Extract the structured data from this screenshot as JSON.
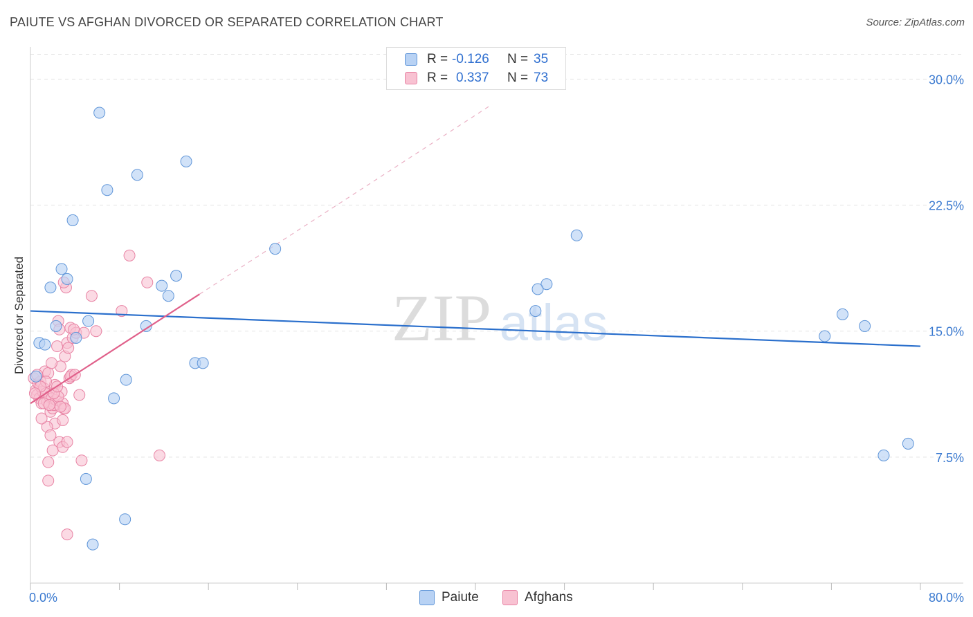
{
  "header": {
    "title": "PAIUTE VS AFGHAN DIVORCED OR SEPARATED CORRELATION CHART",
    "source": "Source: ZipAtlas.com"
  },
  "legend": {
    "row1": {
      "r_label": "R =",
      "r_value": "-0.126",
      "n_label": "N =",
      "n_value": "35"
    },
    "row2": {
      "r_label": "R =",
      "r_value": "0.337",
      "n_label": "N =",
      "n_value": "73"
    }
  },
  "colors": {
    "paiute_fill": "#b8d2f4",
    "paiute_stroke": "#5f95d8",
    "paiute_line": "#2a6fcc",
    "afghans_fill": "#f8c2d2",
    "afghans_stroke": "#e883a4",
    "afghans_line": "#e0608a",
    "tick_label": "#3b7ad0",
    "grid": "#e4e4e4",
    "watermark": "#dcdcdc"
  },
  "watermark": {
    "zip": "ZIP",
    "atlas": "atlas"
  },
  "chart_data": {
    "type": "scatter",
    "xlabel": "",
    "ylabel": "Divorced or Separated",
    "xlim": [
      0,
      80
    ],
    "ylim": [
      0,
      31.5
    ],
    "x_tick_labels": [
      {
        "value": 0,
        "label": "0.0%"
      },
      {
        "value": 80,
        "label": "80.0%"
      }
    ],
    "y_ticks": [
      {
        "value": 7.5,
        "label": "7.5%"
      },
      {
        "value": 15,
        "label": "15.0%"
      },
      {
        "value": 22.5,
        "label": "22.5%"
      },
      {
        "value": 30,
        "label": "30.0%"
      }
    ],
    "grid": true,
    "series": [
      {
        "name": "Paiute",
        "trend": {
          "x": [
            0,
            80
          ],
          "y": [
            16.2,
            14.1
          ]
        },
        "points": [
          [
            6.2,
            28.0
          ],
          [
            9.6,
            24.3
          ],
          [
            14.0,
            25.1
          ],
          [
            6.9,
            23.4
          ],
          [
            3.8,
            21.6
          ],
          [
            22.0,
            19.9
          ],
          [
            2.8,
            18.7
          ],
          [
            3.3,
            18.1
          ],
          [
            13.1,
            18.3
          ],
          [
            1.8,
            17.6
          ],
          [
            11.8,
            17.7
          ],
          [
            12.4,
            17.1
          ],
          [
            5.2,
            15.6
          ],
          [
            2.3,
            15.3
          ],
          [
            4.1,
            14.6
          ],
          [
            10.4,
            15.3
          ],
          [
            0.8,
            14.3
          ],
          [
            1.3,
            14.2
          ],
          [
            14.8,
            13.1
          ],
          [
            15.5,
            13.1
          ],
          [
            8.6,
            12.1
          ],
          [
            7.5,
            11.0
          ],
          [
            5.0,
            6.2
          ],
          [
            8.5,
            3.8
          ],
          [
            5.6,
            2.3
          ],
          [
            49.1,
            20.7
          ],
          [
            46.4,
            17.8
          ],
          [
            45.6,
            17.5
          ],
          [
            45.4,
            16.2
          ],
          [
            73.0,
            16.0
          ],
          [
            71.4,
            14.7
          ],
          [
            75.0,
            15.3
          ],
          [
            78.9,
            8.3
          ],
          [
            76.7,
            7.6
          ],
          [
            0.5,
            12.3
          ]
        ]
      },
      {
        "name": "Afghans",
        "trend": {
          "x": [
            0,
            15.2
          ],
          "y": [
            10.7,
            17.2
          ]
        },
        "trend_extension": {
          "x": [
            15.2,
            41.5
          ],
          "y": [
            17.2,
            28.5
          ]
        },
        "points": [
          [
            0.3,
            12.2
          ],
          [
            0.5,
            11.5
          ],
          [
            0.6,
            11.2
          ],
          [
            0.7,
            11.9
          ],
          [
            0.8,
            11.0
          ],
          [
            0.9,
            12.0
          ],
          [
            1.0,
            10.7
          ],
          [
            1.1,
            11.4
          ],
          [
            1.2,
            11.6
          ],
          [
            1.3,
            12.6
          ],
          [
            1.4,
            11.3
          ],
          [
            1.5,
            10.8
          ],
          [
            1.6,
            12.5
          ],
          [
            1.7,
            11.1
          ],
          [
            1.8,
            10.2
          ],
          [
            1.9,
            11.0
          ],
          [
            2.0,
            10.4
          ],
          [
            2.1,
            10.6
          ],
          [
            2.2,
            11.8
          ],
          [
            2.3,
            10.9
          ],
          [
            2.4,
            14.1
          ],
          [
            2.5,
            15.6
          ],
          [
            2.6,
            15.1
          ],
          [
            2.7,
            12.9
          ],
          [
            2.8,
            11.4
          ],
          [
            2.9,
            10.7
          ],
          [
            3.0,
            10.4
          ],
          [
            3.1,
            13.5
          ],
          [
            3.2,
            17.6
          ],
          [
            3.3,
            14.3
          ],
          [
            3.4,
            14.0
          ],
          [
            3.5,
            12.2
          ],
          [
            3.6,
            15.2
          ],
          [
            3.7,
            12.4
          ],
          [
            3.8,
            14.6
          ],
          [
            4.1,
            14.9
          ],
          [
            4.4,
            11.2
          ],
          [
            4.8,
            14.9
          ],
          [
            5.5,
            17.1
          ],
          [
            5.9,
            15.0
          ],
          [
            8.2,
            16.2
          ],
          [
            8.9,
            19.5
          ],
          [
            10.5,
            17.9
          ],
          [
            3.0,
            17.9
          ],
          [
            2.2,
            9.5
          ],
          [
            1.5,
            9.3
          ],
          [
            1.8,
            8.8
          ],
          [
            2.6,
            8.4
          ],
          [
            2.0,
            7.9
          ],
          [
            1.6,
            7.2
          ],
          [
            2.9,
            8.1
          ],
          [
            3.3,
            8.4
          ],
          [
            1.6,
            6.1
          ],
          [
            4.6,
            7.3
          ],
          [
            11.6,
            7.6
          ],
          [
            3.3,
            2.9
          ],
          [
            1.0,
            9.8
          ],
          [
            2.9,
            9.7
          ],
          [
            3.1,
            10.4
          ],
          [
            1.4,
            12.0
          ],
          [
            0.6,
            12.4
          ],
          [
            0.9,
            11.7
          ],
          [
            1.2,
            10.7
          ],
          [
            2.5,
            11.1
          ],
          [
            1.9,
            13.1
          ],
          [
            2.7,
            10.5
          ],
          [
            3.6,
            12.3
          ],
          [
            1.7,
            10.6
          ],
          [
            0.4,
            11.3
          ],
          [
            2.1,
            11.3
          ],
          [
            4.0,
            12.4
          ],
          [
            3.9,
            15.1
          ],
          [
            2.4,
            11.7
          ]
        ]
      }
    ]
  },
  "bottom_legend": {
    "paiute": "Paiute",
    "afghans": "Afghans"
  }
}
